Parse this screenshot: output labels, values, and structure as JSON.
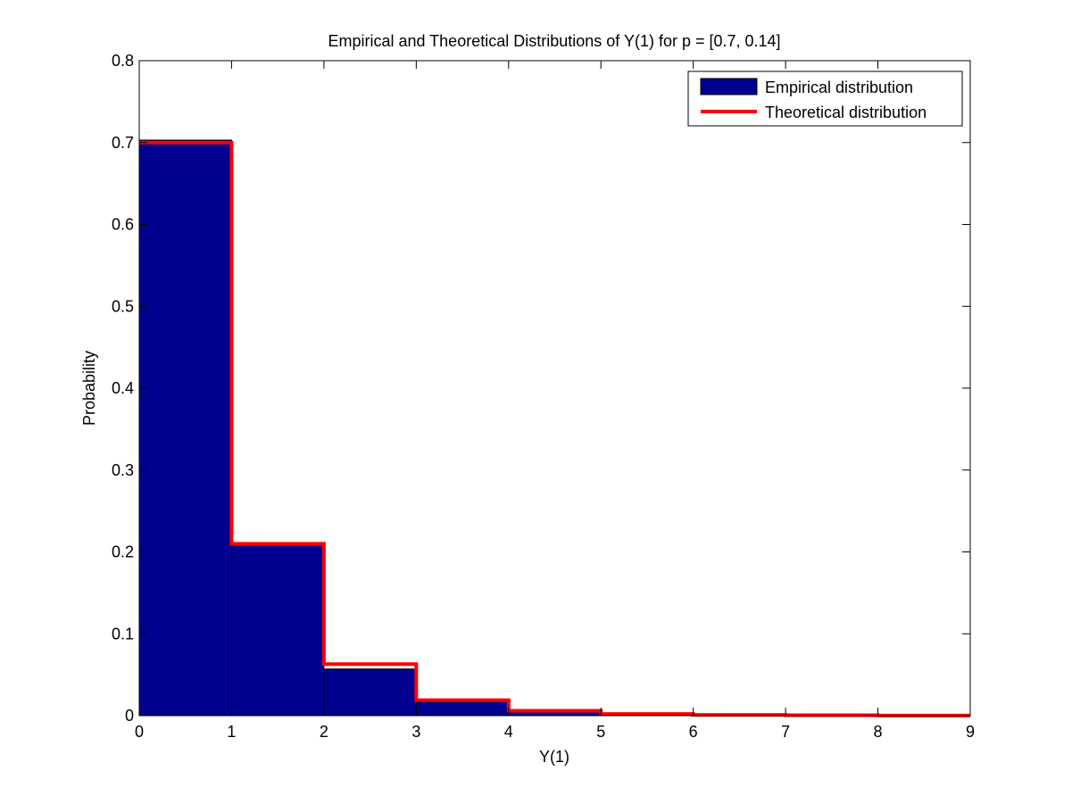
{
  "chart_data": {
    "type": "bar",
    "title": "Empirical and Theoretical Distributions of Y(1) for p = [0.7, 0.14]",
    "xlabel": "Y(1)",
    "ylabel": "Probability",
    "xlim": [
      0,
      9
    ],
    "ylim": [
      0,
      0.8
    ],
    "xticks": [
      "0",
      "1",
      "2",
      "3",
      "4",
      "5",
      "6",
      "7",
      "8",
      "9"
    ],
    "yticks": [
      "0",
      "0.1",
      "0.2",
      "0.3",
      "0.4",
      "0.5",
      "0.6",
      "0.7",
      "0.8"
    ],
    "grid": false,
    "legend_position": "top-right",
    "series": [
      {
        "name": "Empirical distribution",
        "kind": "bar",
        "color": "#00008f",
        "bin_edges": [
          0,
          1,
          2,
          3,
          4,
          5,
          6,
          7,
          8,
          9
        ],
        "values": [
          0.703,
          0.209,
          0.057,
          0.018,
          0.005,
          0.002,
          0.001,
          0.0005,
          0.0002
        ]
      },
      {
        "name": "Theoretical distribution",
        "kind": "step",
        "color": "#ff0000",
        "bin_edges": [
          0,
          1,
          2,
          3,
          4,
          5,
          6,
          7,
          8,
          9
        ],
        "values": [
          0.7,
          0.21,
          0.063,
          0.019,
          0.006,
          0.002,
          0.001,
          0.0005,
          0.0002
        ]
      }
    ]
  }
}
